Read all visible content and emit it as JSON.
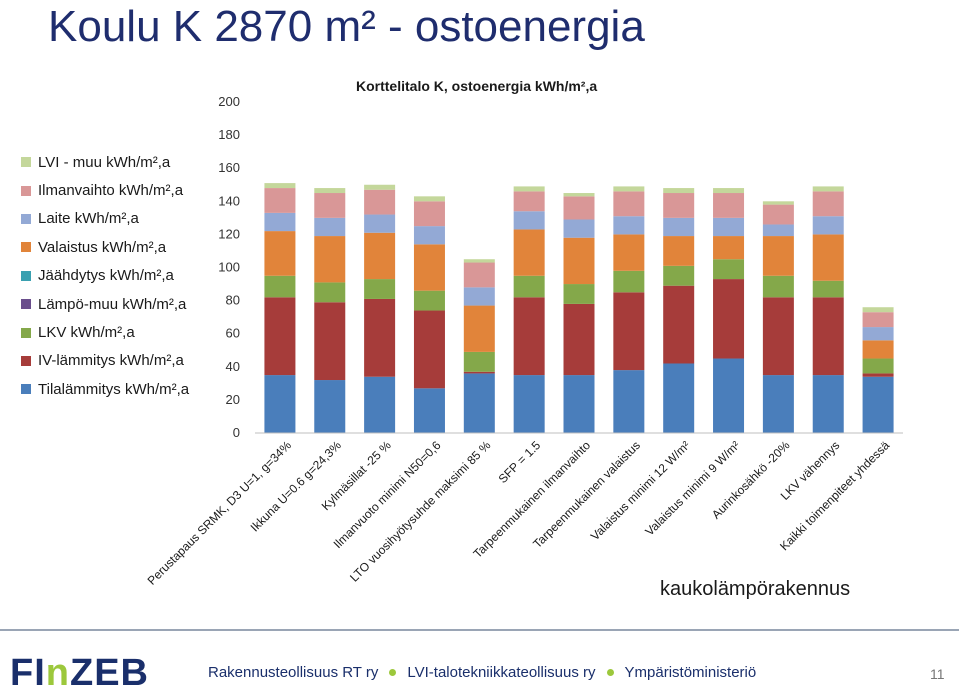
{
  "slide": {
    "title": "Koulu K 2870 m² - ostoenergia",
    "annotation": "kaukolämpörakennus",
    "footer": {
      "logo": {
        "part1": "FI",
        "part2": "n",
        "part3": "ZEB"
      },
      "orgs": [
        "Rakennusteollisuus RT ry",
        "LVI-talotekniikkateollisuus ry",
        "Ympäristöministeriö"
      ],
      "page_number": "11"
    }
  },
  "chart_data": {
    "type": "bar",
    "stacked": true,
    "title": "Korttelitalo K, ostoenergia kWh/m²,a",
    "xlabel": "",
    "ylabel": "",
    "ylim": [
      0,
      200
    ],
    "yticks": [
      0,
      20,
      40,
      60,
      80,
      100,
      120,
      140,
      160,
      180,
      200
    ],
    "grid": false,
    "legend_position": "left",
    "categories": [
      "Perustapaus SRMK, D3 U=1, g=34%",
      "Ikkuna U=0.6 g=24,3%",
      "Kylmäsillat -25 %",
      "Ilmanvuoto minimi N50=0,6",
      "LTO vuosihyötysuhde maksimi 85 %",
      "SFP = 1.5",
      "Tarpeenmukainen ilmanvaihto",
      "Tarpeenmukainen valaistus",
      "Valaistus minimi 12 W/m²",
      "Valaistus minimi 9 W/m²",
      "Aurinkosähkö -20%",
      "LKV vähennys",
      "Kaikki toimenpiteet yhdessä"
    ],
    "series": [
      {
        "name": "Tilalämmitys kWh/m²,a",
        "color": "#4a7ebb",
        "values": [
          35,
          32,
          34,
          27,
          36,
          35,
          35,
          38,
          42,
          45,
          35,
          35,
          34
        ]
      },
      {
        "name": "IV-lämmitys kWh/m²,a",
        "color": "#a63c3a",
        "values": [
          47,
          47,
          47,
          47,
          1,
          47,
          43,
          47,
          47,
          48,
          47,
          47,
          2
        ]
      },
      {
        "name": "LKV kWh/m²,a",
        "color": "#84a84a",
        "values": [
          13,
          12,
          12,
          12,
          12,
          13,
          12,
          13,
          12,
          12,
          13,
          10,
          9
        ]
      },
      {
        "name": "Lämpö-muu kWh/m²,a",
        "color": "#6a4e8c",
        "values": [
          0,
          0,
          0,
          0,
          0,
          0,
          0,
          0,
          0,
          0,
          0,
          0,
          0
        ]
      },
      {
        "name": "Jäähdytys kWh/m²,a",
        "color": "#3aa0b0",
        "values": [
          0,
          0,
          0,
          0,
          0,
          0,
          0,
          0,
          0,
          0,
          0,
          0,
          0
        ]
      },
      {
        "name": "Valaistus kWh/m²,a",
        "color": "#e1843a",
        "values": [
          27,
          28,
          28,
          28,
          28,
          28,
          28,
          22,
          18,
          14,
          24,
          28,
          11
        ]
      },
      {
        "name": "Laite kWh/m²,a",
        "color": "#93a9d5",
        "values": [
          11,
          11,
          11,
          11,
          11,
          11,
          11,
          11,
          11,
          11,
          7,
          11,
          8
        ]
      },
      {
        "name": "Ilmanvaihto kWh/m²,a",
        "color": "#d99797",
        "values": [
          15,
          15,
          15,
          15,
          15,
          12,
          14,
          15,
          15,
          15,
          12,
          15,
          9
        ]
      },
      {
        "name": "LVI - muu kWh/m²,a",
        "color": "#c4d79b",
        "values": [
          3,
          3,
          3,
          3,
          2,
          3,
          2,
          3,
          3,
          3,
          2,
          3,
          3
        ]
      }
    ]
  }
}
